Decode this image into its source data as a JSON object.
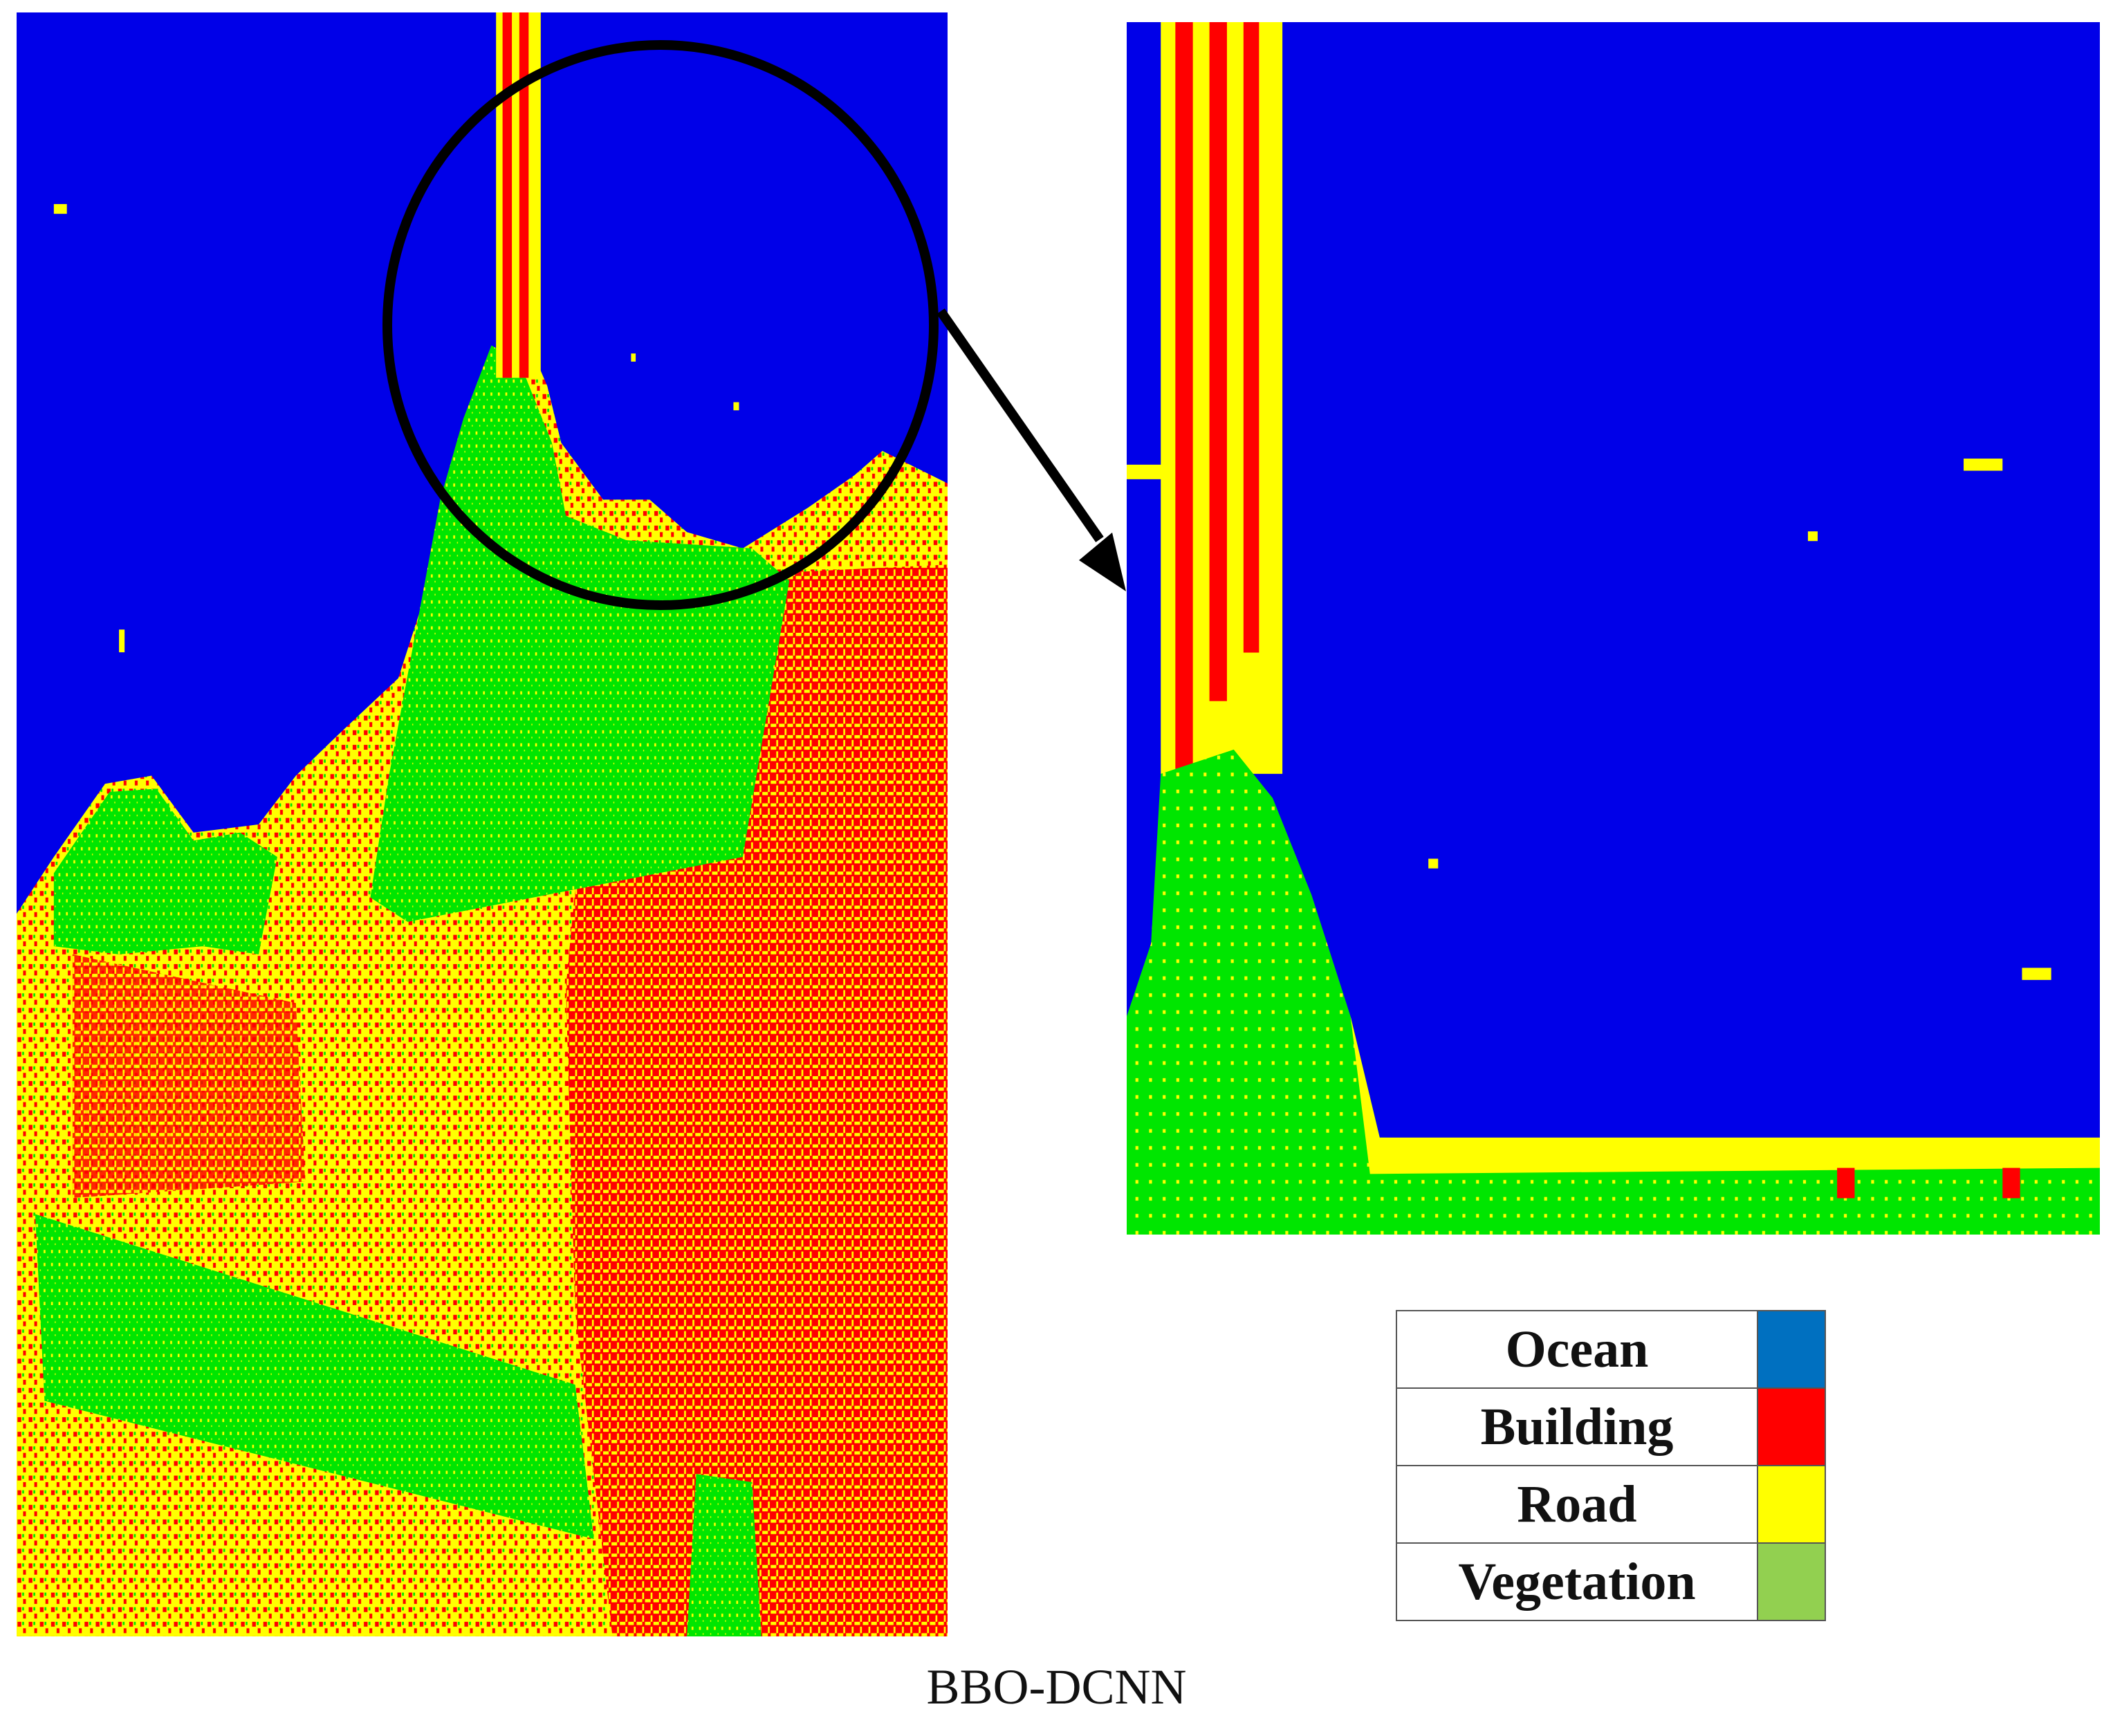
{
  "figure": {
    "caption": "BBO-DCNN",
    "class_colors": {
      "ocean_map": "#0000e8",
      "building_map": "#ff0000",
      "road_map": "#ffff00",
      "vegetation_map": "#00e600"
    }
  },
  "legend": {
    "items": [
      {
        "label": "Ocean",
        "color": "#0070c0"
      },
      {
        "label": "Building",
        "color": "#ff0000"
      },
      {
        "label": "Road",
        "color": "#ffff00"
      },
      {
        "label": "Vegetation",
        "color": "#92d050"
      }
    ]
  }
}
